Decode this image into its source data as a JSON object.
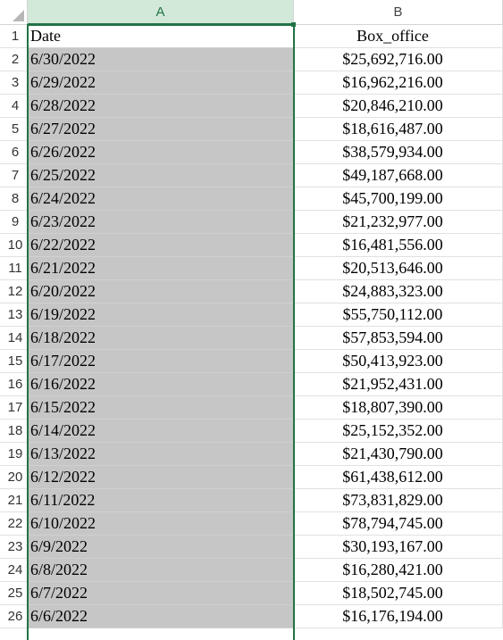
{
  "columns": [
    "A",
    "B"
  ],
  "rows": [
    {
      "num": "1",
      "a": "Date",
      "b": "Box_office"
    },
    {
      "num": "2",
      "a": "6/30/2022",
      "b": "$25,692,716.00"
    },
    {
      "num": "3",
      "a": "6/29/2022",
      "b": "$16,962,216.00"
    },
    {
      "num": "4",
      "a": "6/28/2022",
      "b": "$20,846,210.00"
    },
    {
      "num": "5",
      "a": "6/27/2022",
      "b": "$18,616,487.00"
    },
    {
      "num": "6",
      "a": "6/26/2022",
      "b": "$38,579,934.00"
    },
    {
      "num": "7",
      "a": "6/25/2022",
      "b": "$49,187,668.00"
    },
    {
      "num": "8",
      "a": "6/24/2022",
      "b": "$45,700,199.00"
    },
    {
      "num": "9",
      "a": "6/23/2022",
      "b": "$21,232,977.00"
    },
    {
      "num": "10",
      "a": "6/22/2022",
      "b": "$16,481,556.00"
    },
    {
      "num": "11",
      "a": "6/21/2022",
      "b": "$20,513,646.00"
    },
    {
      "num": "12",
      "a": "6/20/2022",
      "b": "$24,883,323.00"
    },
    {
      "num": "13",
      "a": "6/19/2022",
      "b": "$55,750,112.00"
    },
    {
      "num": "14",
      "a": "6/18/2022",
      "b": "$57,853,594.00"
    },
    {
      "num": "15",
      "a": "6/17/2022",
      "b": "$50,413,923.00"
    },
    {
      "num": "16",
      "a": "6/16/2022",
      "b": "$21,952,431.00"
    },
    {
      "num": "17",
      "a": "6/15/2022",
      "b": "$18,807,390.00"
    },
    {
      "num": "18",
      "a": "6/14/2022",
      "b": "$25,152,352.00"
    },
    {
      "num": "19",
      "a": "6/13/2022",
      "b": "$21,430,790.00"
    },
    {
      "num": "20",
      "a": "6/12/2022",
      "b": "$61,438,612.00"
    },
    {
      "num": "21",
      "a": "6/11/2022",
      "b": "$73,831,829.00"
    },
    {
      "num": "22",
      "a": "6/10/2022",
      "b": "$78,794,745.00"
    },
    {
      "num": "23",
      "a": "6/9/2022",
      "b": "$30,193,167.00"
    },
    {
      "num": "24",
      "a": "6/8/2022",
      "b": "$16,280,421.00"
    },
    {
      "num": "25",
      "a": "6/7/2022",
      "b": "$18,502,745.00"
    },
    {
      "num": "26",
      "a": "6/6/2022",
      "b": "$16,176,194.00"
    }
  ],
  "colors": {
    "selection_accent": "#217346",
    "selected_fill": "#c6c6c6",
    "header_selected_bg": "#d2e8d9"
  }
}
